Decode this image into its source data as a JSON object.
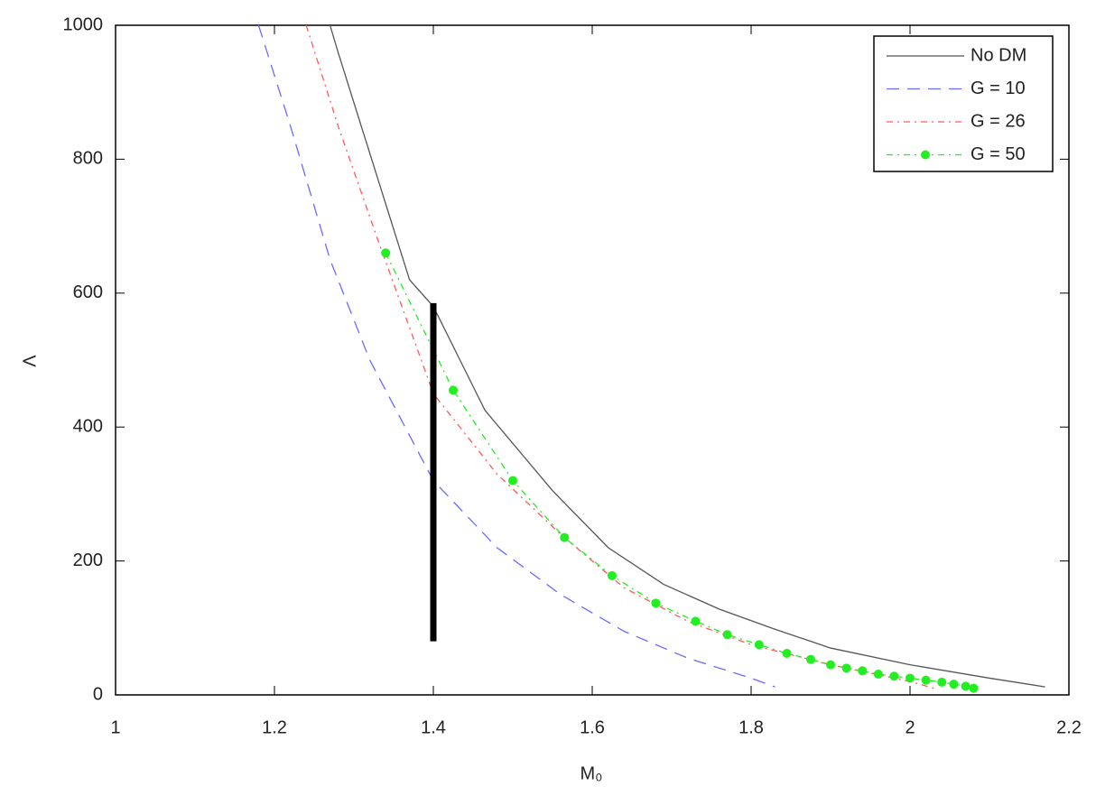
{
  "chart_data": {
    "type": "line",
    "x_label": "M₀",
    "y_label": "Λ",
    "xlim": [
      1,
      2.2
    ],
    "ylim": [
      0,
      1000
    ],
    "xticks": [
      1,
      1.2,
      1.4,
      1.6,
      1.8,
      2,
      2.2
    ],
    "yticks": [
      0,
      200,
      400,
      600,
      800,
      1000
    ],
    "legend": "upper right",
    "series": [
      {
        "name": "No DM",
        "color": "#555555",
        "style": "solid",
        "markers": false,
        "x": [
          1.27,
          1.28,
          1.37,
          1.4,
          1.465,
          1.55,
          1.62,
          1.69,
          1.76,
          1.83,
          1.9,
          2.0,
          2.1,
          2.17
        ],
        "values": [
          1000,
          960,
          620,
          580,
          425,
          305,
          220,
          165,
          128,
          98,
          70,
          45,
          25,
          12
        ]
      },
      {
        "name": "G = 10",
        "color": "#6a6aff",
        "style": "dash",
        "markers": false,
        "x": [
          1.18,
          1.22,
          1.27,
          1.32,
          1.4,
          1.48,
          1.56,
          1.64,
          1.72,
          1.8,
          1.83
        ],
        "values": [
          1000,
          850,
          650,
          500,
          320,
          220,
          150,
          95,
          55,
          25,
          12
        ]
      },
      {
        "name": "G = 26",
        "color": "#ff5a5a",
        "style": "dashdot",
        "markers": false,
        "x": [
          1.24,
          1.28,
          1.33,
          1.4,
          1.48,
          1.56,
          1.64,
          1.72,
          1.8,
          1.9,
          2.0,
          2.03
        ],
        "values": [
          1000,
          850,
          680,
          450,
          330,
          240,
          160,
          110,
          75,
          45,
          20,
          10
        ]
      },
      {
        "name": "G = 50",
        "color": "#22ee22",
        "style": "dashdot",
        "markers": true,
        "x": [
          1.34,
          1.425,
          1.5,
          1.565,
          1.625,
          1.68,
          1.73,
          1.77,
          1.81,
          1.845,
          1.875,
          1.9,
          1.92,
          1.94,
          1.96,
          1.98,
          2.0,
          2.02,
          2.04,
          2.055,
          2.07,
          2.08
        ],
        "values": [
          660,
          455,
          320,
          235,
          178,
          137,
          110,
          90,
          75,
          62,
          53,
          45,
          40,
          36,
          31,
          28,
          25,
          22,
          19,
          16,
          13,
          10
        ]
      }
    ],
    "vline": {
      "x": 1.4,
      "y": [
        80,
        585
      ],
      "color": "#000000"
    }
  }
}
